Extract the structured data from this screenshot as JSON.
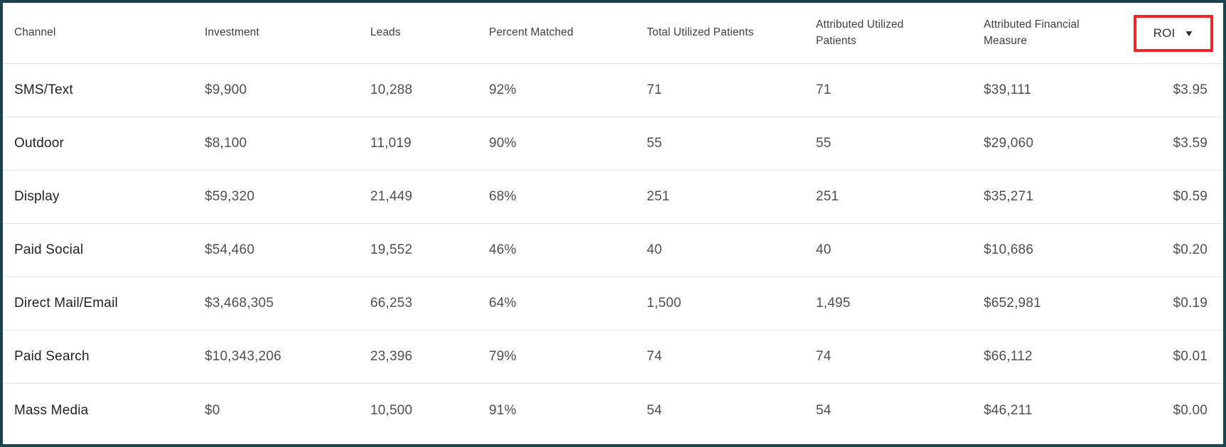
{
  "table": {
    "columns": [
      {
        "label": "Channel"
      },
      {
        "label": "Investment"
      },
      {
        "label": "Leads"
      },
      {
        "label": "Percent Matched"
      },
      {
        "label": "Total Utilized Patients"
      },
      {
        "label": "Attributed Utilized Patients"
      },
      {
        "label": "Attributed Financial Measure"
      },
      {
        "label": "ROI",
        "sort_direction": "descending",
        "highlighted": true
      }
    ],
    "rows": [
      {
        "cells": [
          "SMS/Text",
          "$9,900",
          "10,288",
          "92%",
          "71",
          "71",
          "$39,111",
          "$3.95"
        ]
      },
      {
        "cells": [
          "Outdoor",
          "$8,100",
          "11,019",
          "90%",
          "55",
          "55",
          "$29,060",
          "$3.59"
        ]
      },
      {
        "cells": [
          "Display",
          "$59,320",
          "21,449",
          "68%",
          "251",
          "251",
          "$35,271",
          "$0.59"
        ]
      },
      {
        "cells": [
          "Paid Social",
          "$54,460",
          "19,552",
          "46%",
          "40",
          "40",
          "$10,686",
          "$0.20"
        ]
      },
      {
        "cells": [
          "Direct Mail/Email",
          "$3,468,305",
          "66,253",
          "64%",
          "1,500",
          "1,495",
          "$652,981",
          "$0.19"
        ]
      },
      {
        "cells": [
          "Paid Search",
          "$10,343,206",
          "23,396",
          "79%",
          "74",
          "74",
          "$66,112",
          "$0.01"
        ]
      },
      {
        "cells": [
          "Mass Media",
          "$0",
          "10,500",
          "91%",
          "54",
          "54",
          "$46,211",
          "$0.00"
        ]
      }
    ]
  },
  "icons": {
    "sort_desc": "▼"
  },
  "colors": {
    "frame_border": "#19454e",
    "row_divider": "#e7e7e7",
    "highlight_red": "#e8282c",
    "header_text": "#3f3f3f",
    "channel_text": "#222222",
    "value_text": "#4f4f4f",
    "background": "#ffffff"
  }
}
